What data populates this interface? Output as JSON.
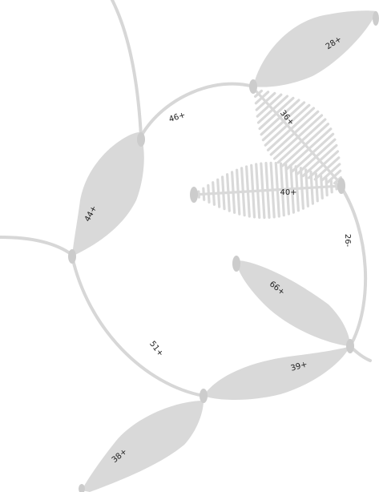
{
  "diagram": {
    "labels": {
      "l28": "28+",
      "l36": "36+",
      "l46": "46+",
      "l40": "40+",
      "l44": "44+",
      "l26": "26-",
      "l66": "66+",
      "l51": "51+",
      "l39": "39+",
      "l38": "38+"
    }
  },
  "colors": {
    "shape": "#d9d9d9",
    "node": "#cccccc",
    "edge": "#d7d7d7",
    "text": "#222222"
  }
}
